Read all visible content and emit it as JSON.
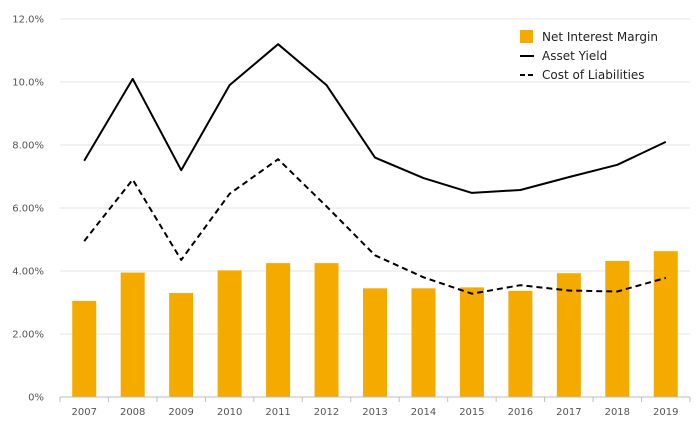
{
  "chart_data": {
    "type": "bar+line",
    "categories": [
      "2007",
      "2008",
      "2009",
      "2010",
      "2011",
      "2012",
      "2013",
      "2014",
      "2015",
      "2016",
      "2017",
      "2018",
      "2019"
    ],
    "bar_series": {
      "name": "Net Interest Margin",
      "color": "#F5AA00",
      "values": [
        3.05,
        3.95,
        3.3,
        4.02,
        4.25,
        4.25,
        3.45,
        3.45,
        3.48,
        3.37,
        3.93,
        4.32,
        4.63
      ]
    },
    "line_series": [
      {
        "name": "Asset Yield",
        "color": "#000000",
        "style": "solid",
        "values": [
          7.5,
          10.1,
          7.2,
          9.9,
          11.2,
          9.9,
          7.6,
          6.95,
          6.48,
          6.57,
          6.98,
          7.37,
          8.1
        ]
      },
      {
        "name": "Cost of Liabilities",
        "color": "#000000",
        "style": "dashed",
        "values": [
          4.95,
          6.9,
          4.35,
          6.45,
          7.55,
          6.05,
          4.5,
          3.8,
          3.28,
          3.55,
          3.38,
          3.35,
          3.78
        ]
      }
    ],
    "y_ticks": [
      "0%",
      "2.00%",
      "4.00%",
      "6.00%",
      "8.00%",
      "10.0%",
      "12.0%"
    ],
    "ylim": [
      0,
      12
    ],
    "grid": true,
    "legend_position": "top-right"
  }
}
